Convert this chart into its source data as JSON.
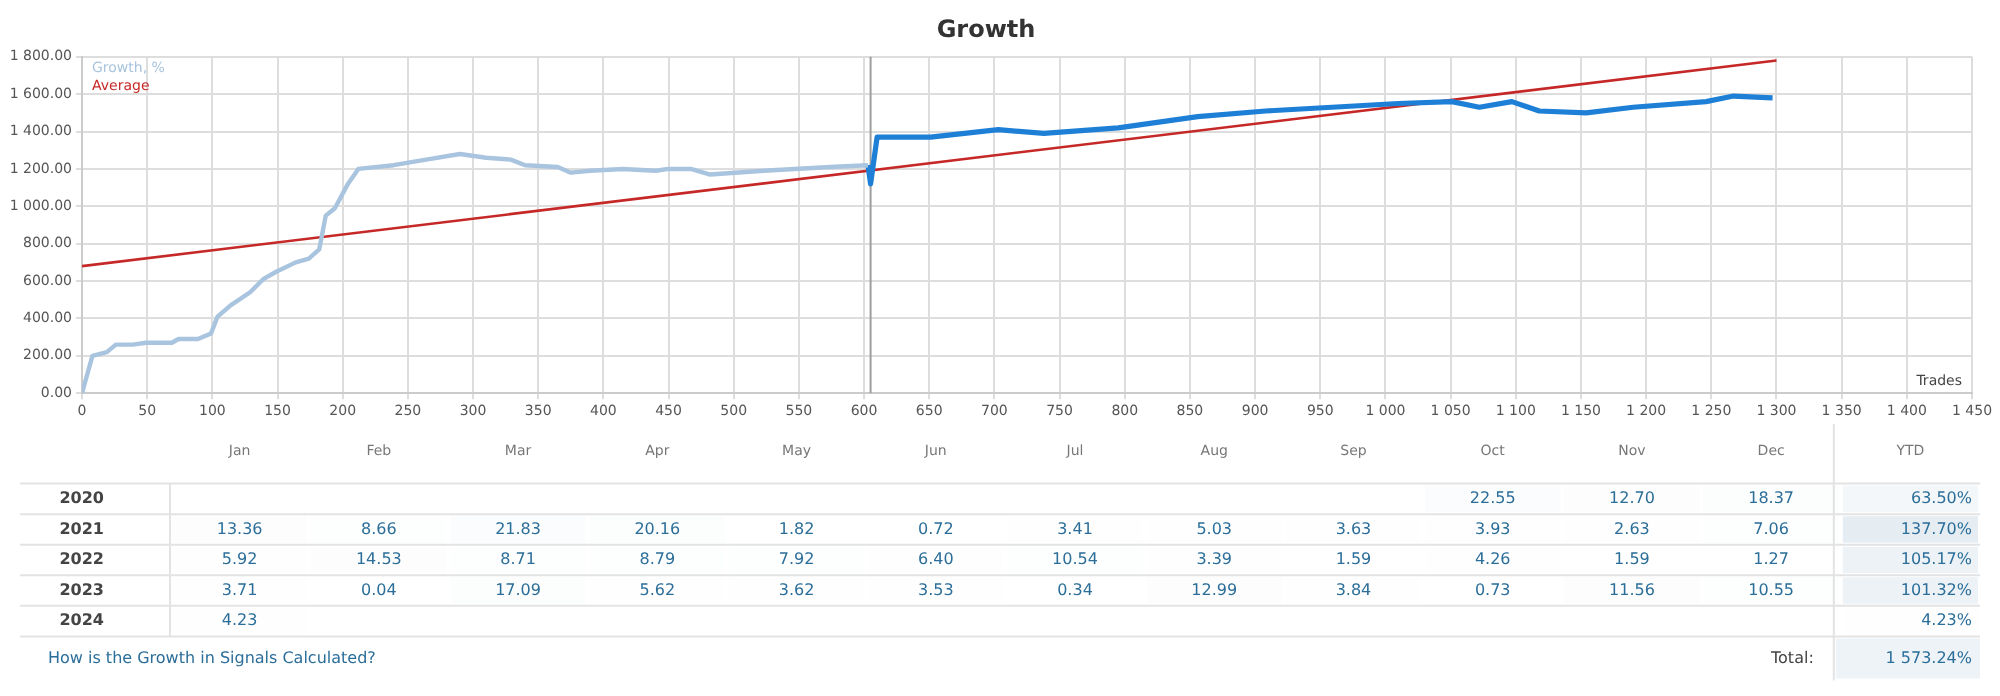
{
  "chart_data": [
    {
      "type": "line",
      "title": "Growth",
      "xlabel": "Trades",
      "legend": "top left",
      "grid": true,
      "marker": "none",
      "xlim": [
        0,
        1450
      ],
      "xticks": [
        0,
        50,
        100,
        150,
        200,
        250,
        300,
        350,
        400,
        450,
        500,
        550,
        600,
        650,
        700,
        750,
        800,
        850,
        900,
        950,
        {
          "value": 1000,
          "label": "1 000"
        },
        {
          "value": 1050,
          "label": "1 050"
        },
        {
          "value": 1100,
          "label": "1 100"
        },
        {
          "value": 1150,
          "label": "1 150"
        },
        {
          "value": 1200,
          "label": "1 200"
        },
        {
          "value": 1250,
          "label": "1 250"
        },
        {
          "value": 1300,
          "label": "1 300"
        },
        {
          "value": 1350,
          "label": "1 350"
        },
        {
          "value": 1400,
          "label": "1 400"
        },
        {
          "value": 1450,
          "label": "1 450"
        }
      ],
      "ylim": [
        0,
        1800
      ],
      "yticks": [
        {
          "value": 0,
          "label": "0.00"
        },
        {
          "value": 200,
          "label": "200.00"
        },
        {
          "value": 400,
          "label": "400.00"
        },
        {
          "value": 600,
          "label": "600.00"
        },
        {
          "value": 800,
          "label": "800.00"
        },
        {
          "value": 1000,
          "label": "1 000.00"
        },
        {
          "value": 1200,
          "label": "1 200.00"
        },
        {
          "value": 1400,
          "label": "1 400.00"
        },
        {
          "value": 1600,
          "label": "1 600.00"
        },
        {
          "value": 1800,
          "label": "1 800.00"
        }
      ],
      "ref_lines": [
        {
          "axis": "x",
          "value": 605,
          "color": "#9e9e9e"
        }
      ],
      "series": [
        {
          "name": "Growth, %",
          "color": "#a9c4de",
          "x": [
            0,
            8,
            19,
            26,
            39,
            49,
            69,
            74,
            89,
            99,
            104,
            114,
            129,
            139,
            149,
            164,
            174,
            182,
            187,
            194,
            204,
            212,
            239,
            264,
            290,
            310,
            329,
            340,
            365,
            375,
            390,
            415,
            440,
            450,
            467,
            482,
            523,
            574,
            603
          ],
          "values": [
            0,
            200,
            220,
            260,
            260,
            270,
            270,
            290,
            290,
            320,
            410,
            470,
            540,
            610,
            650,
            700,
            720,
            770,
            950,
            990,
            1120,
            1200,
            1220,
            1250,
            1280,
            1260,
            1250,
            1220,
            1210,
            1180,
            1190,
            1200,
            1190,
            1200,
            1200,
            1170,
            1190,
            1210,
            1220
          ]
        },
        {
          "color": "#1e7fd6",
          "x": [
            603,
            605,
            610,
            651,
            703,
            738,
            795,
            856,
            908,
            959,
            1010,
            1051,
            1072,
            1097,
            1118,
            1154,
            1190,
            1246,
            1267,
            1297
          ],
          "values": [
            1220,
            1120,
            1370,
            1370,
            1410,
            1390,
            1420,
            1480,
            1510,
            1530,
            1550,
            1560,
            1530,
            1560,
            1510,
            1500,
            1530,
            1560,
            1590,
            1580
          ]
        },
        {
          "name": "Average",
          "color": "#c62828",
          "x": [
            0,
            1300
          ],
          "values": [
            680,
            1780
          ]
        }
      ]
    },
    {
      "type": "heatmap",
      "categories": [
        "Jan",
        "Feb",
        "Mar",
        "Apr",
        "May",
        "Jun",
        "Jul",
        "Aug",
        "Sep",
        "Oct",
        "Nov",
        "Dec",
        "YTD"
      ],
      "y_categories": [
        "2020",
        "2021",
        "2022",
        "2023",
        "2024"
      ],
      "cells": [
        [
          null,
          null,
          null,
          null,
          null,
          null,
          null,
          null,
          null,
          22.55,
          12.7,
          18.37,
          63.5
        ],
        [
          13.36,
          8.66,
          21.83,
          20.16,
          1.82,
          0.72,
          3.41,
          5.03,
          3.63,
          3.93,
          2.63,
          7.06,
          137.7
        ],
        [
          5.92,
          14.53,
          8.71,
          8.79,
          7.92,
          6.4,
          10.54,
          3.39,
          1.59,
          4.26,
          1.59,
          1.27,
          105.17
        ],
        [
          3.71,
          0.04,
          17.09,
          5.62,
          3.62,
          3.53,
          0.34,
          12.99,
          3.84,
          0.73,
          11.56,
          10.55,
          101.32
        ],
        [
          4.23,
          null,
          null,
          null,
          null,
          null,
          null,
          null,
          null,
          null,
          null,
          null,
          4.23
        ]
      ],
      "cell_labels": [
        [
          null,
          null,
          null,
          null,
          null,
          null,
          null,
          null,
          null,
          "22.55",
          "12.70",
          "18.37",
          "63.50%"
        ],
        [
          "13.36",
          "8.66",
          "21.83",
          "20.16",
          "1.82",
          "0.72",
          "3.41",
          "5.03",
          "3.63",
          "3.93",
          "2.63",
          "7.06",
          "137.70%"
        ],
        [
          "5.92",
          "14.53",
          "8.71",
          "8.79",
          "7.92",
          "6.40",
          "10.54",
          "3.39",
          "1.59",
          "4.26",
          "1.59",
          "1.27",
          "105.17%"
        ],
        [
          "3.71",
          "0.04",
          "17.09",
          "5.62",
          "3.62",
          "3.53",
          "0.34",
          "12.99",
          "3.84",
          "0.73",
          "11.56",
          "10.55",
          "101.32%"
        ],
        [
          "4.23",
          null,
          null,
          null,
          null,
          null,
          null,
          null,
          null,
          null,
          null,
          null,
          "4.23%"
        ]
      ],
      "annotations": [
        "How is the Growth in Signals Calculated?",
        "Total:",
        "1 573.24%"
      ]
    }
  ]
}
